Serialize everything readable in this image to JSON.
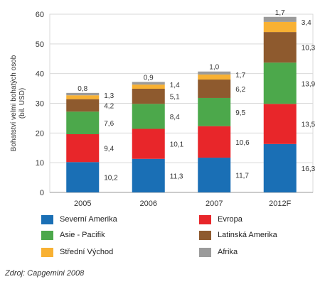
{
  "chart_data": {
    "type": "bar",
    "stacked": true,
    "categories": [
      "2005",
      "2006",
      "2007",
      "2012F"
    ],
    "ylabel": "Bohatství velmi bohatých osob (bil. USD)",
    "ylim": [
      0,
      60
    ],
    "yticks": [
      "0",
      "10",
      "20",
      "30",
      "40",
      "50",
      "60"
    ],
    "grid": true,
    "legend_position": "bottom",
    "series": [
      {
        "name": "Severní Amerika",
        "color": "#1a6fb5",
        "values": [
          10.2,
          11.3,
          11.7,
          16.3
        ],
        "labels": [
          "10,2",
          "11,3",
          "11,7",
          "16,3"
        ]
      },
      {
        "name": "Evropa",
        "color": "#e8262a",
        "values": [
          9.4,
          10.1,
          10.6,
          13.5
        ],
        "labels": [
          "9,4",
          "10,1",
          "10,6",
          "13,5"
        ]
      },
      {
        "name": "Asie - Pacifik",
        "color": "#4ca84b",
        "values": [
          7.6,
          8.4,
          9.5,
          13.9
        ],
        "labels": [
          "7,6",
          "8,4",
          "9,5",
          "13,9"
        ]
      },
      {
        "name": "Latinská Amerika",
        "color": "#8e5a2e",
        "values": [
          4.2,
          5.1,
          6.2,
          10.3
        ],
        "labels": [
          "4,2",
          "5,1",
          "6,2",
          "10,3"
        ]
      },
      {
        "name": "Střední Východ",
        "color": "#f8b133",
        "values": [
          1.3,
          1.4,
          1.7,
          3.4
        ],
        "labels": [
          "1,3",
          "1,4",
          "1,7",
          "3,4"
        ]
      },
      {
        "name": "Afrika",
        "color": "#9b9b9b",
        "values": [
          0.8,
          0.9,
          1.0,
          1.7
        ],
        "labels": [
          "0,8",
          "0,9",
          "1,0",
          "1,7"
        ]
      }
    ]
  },
  "legend": {
    "items": [
      {
        "label": "Severní Amerika",
        "color": "#1a6fb5"
      },
      {
        "label": "Evropa",
        "color": "#e8262a"
      },
      {
        "label": "Asie - Pacifik",
        "color": "#4ca84b"
      },
      {
        "label": "Latinská Amerika",
        "color": "#8e5a2e"
      },
      {
        "label": "Střední Východ",
        "color": "#f8b133"
      },
      {
        "label": "Afrika",
        "color": "#9b9b9b"
      }
    ]
  },
  "source": "Zdroj: Capgemini 2008"
}
